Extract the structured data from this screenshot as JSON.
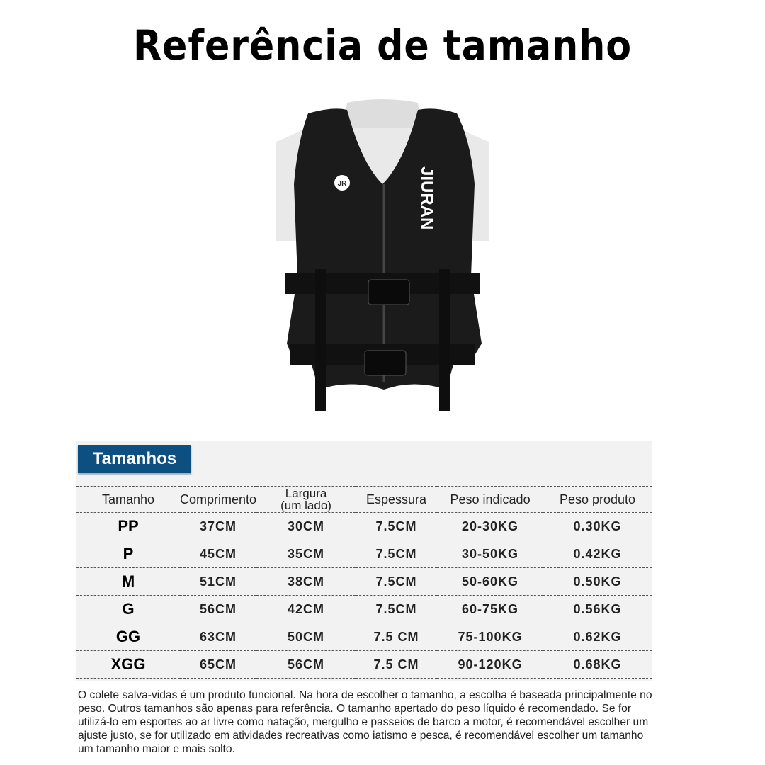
{
  "title": "Referência de tamanho",
  "product_image": {
    "logo_text": "JIURAN",
    "emblem_text": "JR"
  },
  "section_badge": "Tamanhos",
  "colors": {
    "badge": "#0d4f80",
    "panel": "#f2f2f2",
    "vest": "#1b1b1b"
  },
  "table": {
    "headers": [
      "Tamanho",
      "Comprimento",
      "Largura\n(um lado)",
      "Espessura",
      "Peso indicado",
      "Peso produto"
    ],
    "rows": [
      [
        "PP",
        "37CM",
        "30CM",
        "7.5CM",
        "20-30KG",
        "0.30KG"
      ],
      [
        "P",
        "45CM",
        "35CM",
        "7.5CM",
        "30-50KG",
        "0.42KG"
      ],
      [
        "M",
        "51CM",
        "38CM",
        "7.5CM",
        "50-60KG",
        "0.50KG"
      ],
      [
        "G",
        "56CM",
        "42CM",
        "7.5CM",
        "60-75KG",
        "0.56KG"
      ],
      [
        "GG",
        "63CM",
        "50CM",
        "7.5 CM",
        "75-100KG",
        "0.62KG"
      ],
      [
        "XGG",
        "65CM",
        "56CM",
        "7.5 CM",
        "90-120KG",
        "0.68KG"
      ]
    ]
  },
  "note": "O colete salva-vidas é um produto funcional. Na hora de escolher o tamanho, a escolha é baseada principalmente no peso. Outros tamanhos são apenas para referência. O tamanho apertado do peso líquido é recomendado. Se for utilizá-lo em esportes ao ar livre como natação, mergulho e passeios de barco a motor, é recomendável escolher um ajuste justo, se for utilizado em atividades recreativas como iatismo e pesca, é recomendável escolher um tamanho um tamanho maior e mais solto."
}
